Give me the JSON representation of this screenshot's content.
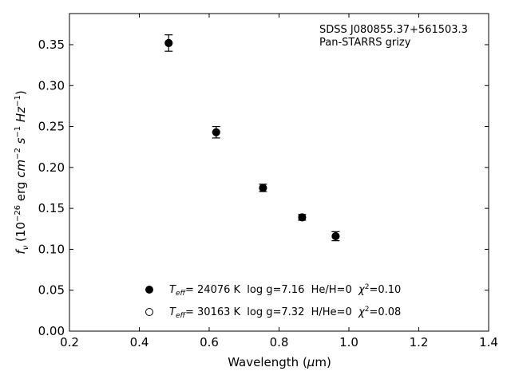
{
  "chart_data": {
    "type": "scatter",
    "xlabel_prefix": "Wavelength (",
    "xlabel_mu": "μ",
    "xlabel_suffix": "m)",
    "ylabel": {
      "f": "f",
      "nu": "ν",
      "open": " (10",
      "exp1": "−26",
      "mid": " erg ",
      "cm": "cm",
      "exp2": "−2",
      "s": " s",
      "exp3": "−1",
      "hz": " Hz",
      "exp4": "−1",
      "close": ")"
    },
    "xlim": [
      0.2,
      1.4
    ],
    "ylim": [
      0.0,
      0.388
    ],
    "xticks": [
      0.2,
      0.4,
      0.6,
      0.8,
      1.0,
      1.2,
      1.4
    ],
    "xtick_labels": [
      "0.2",
      "0.4",
      "0.6",
      "0.8",
      "1.0",
      "1.2",
      "1.4"
    ],
    "yticks": [
      0.0,
      0.05,
      0.1,
      0.15,
      0.2,
      0.25,
      0.3,
      0.35
    ],
    "ytick_labels": [
      "0.00",
      "0.05",
      "0.10",
      "0.15",
      "0.20",
      "0.25",
      "0.30",
      "0.35"
    ],
    "grid": false,
    "annotations": [
      "SDSS J080855.37+561503.3",
      "Pan-STARRS grizy"
    ],
    "series": [
      {
        "marker": "filled-circle",
        "color": "#000000",
        "x": [
          0.484,
          0.62,
          0.754,
          0.866,
          0.962
        ],
        "y": [
          0.352,
          0.243,
          0.175,
          0.139,
          0.116
        ],
        "yerr": [
          0.01,
          0.007,
          0.0045,
          0.0035,
          0.0055
        ]
      },
      {
        "marker": "open-circle",
        "color": "#000000",
        "x": [
          0.484,
          0.62,
          0.754,
          0.866,
          0.962
        ],
        "y": [
          0.352,
          0.243,
          0.175,
          0.139,
          0.116
        ]
      }
    ],
    "legend": {
      "placement": "lower-center",
      "entries": [
        {
          "marker": "filled-circle",
          "teff_sym": "T",
          "teff_sub": "eff",
          "teff_val": "= 24076 K",
          "logg": "  log g=7.16",
          "comp": "  He/H=0",
          "chi_sym": "χ",
          "chi_sup": "2",
          "chi_val": "=0.10"
        },
        {
          "marker": "open-circle",
          "teff_sym": "T",
          "teff_sub": "eff",
          "teff_val": "= 30163 K",
          "logg": "  log g=7.32",
          "comp": "  H/He=0",
          "chi_sym": "χ",
          "chi_sup": "2",
          "chi_val": "=0.08"
        }
      ]
    }
  }
}
